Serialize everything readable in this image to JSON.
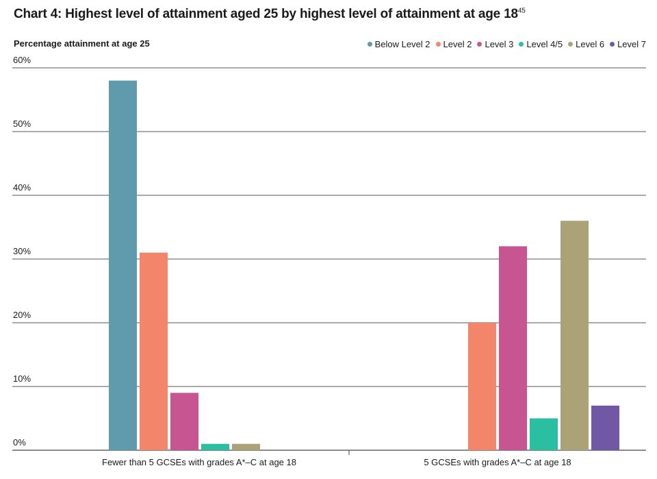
{
  "title": "Chart 4: Highest level of attainment aged 25 by highest level of attainment at age 18",
  "title_footnote": "45",
  "chart_data": {
    "type": "bar",
    "ylabel": "Percentage attainment at age 25",
    "xlabel": "",
    "ylim": [
      0,
      60
    ],
    "yticks": [
      "0%",
      "10%",
      "20%",
      "30%",
      "40%",
      "50%",
      "60%"
    ],
    "categories": [
      "Fewer than 5 GCSEs with grades A*–C at age 18",
      "5 GCSEs with grades A*–C at age 18"
    ],
    "legend_position": "top-right",
    "grid": true,
    "series": [
      {
        "name": "Below Level 2",
        "color": "#5f9aad",
        "values": [
          58,
          0
        ]
      },
      {
        "name": "Level 2",
        "color": "#f2856a",
        "values": [
          31,
          20
        ]
      },
      {
        "name": "Level 3",
        "color": "#c65591",
        "values": [
          9,
          32
        ]
      },
      {
        "name": "Level 4/5",
        "color": "#29bfa0",
        "values": [
          1,
          5
        ]
      },
      {
        "name": "Level 6",
        "color": "#aba377",
        "values": [
          1,
          36
        ]
      },
      {
        "name": "Level 7",
        "color": "#7158a6",
        "values": [
          0,
          7
        ]
      }
    ]
  }
}
